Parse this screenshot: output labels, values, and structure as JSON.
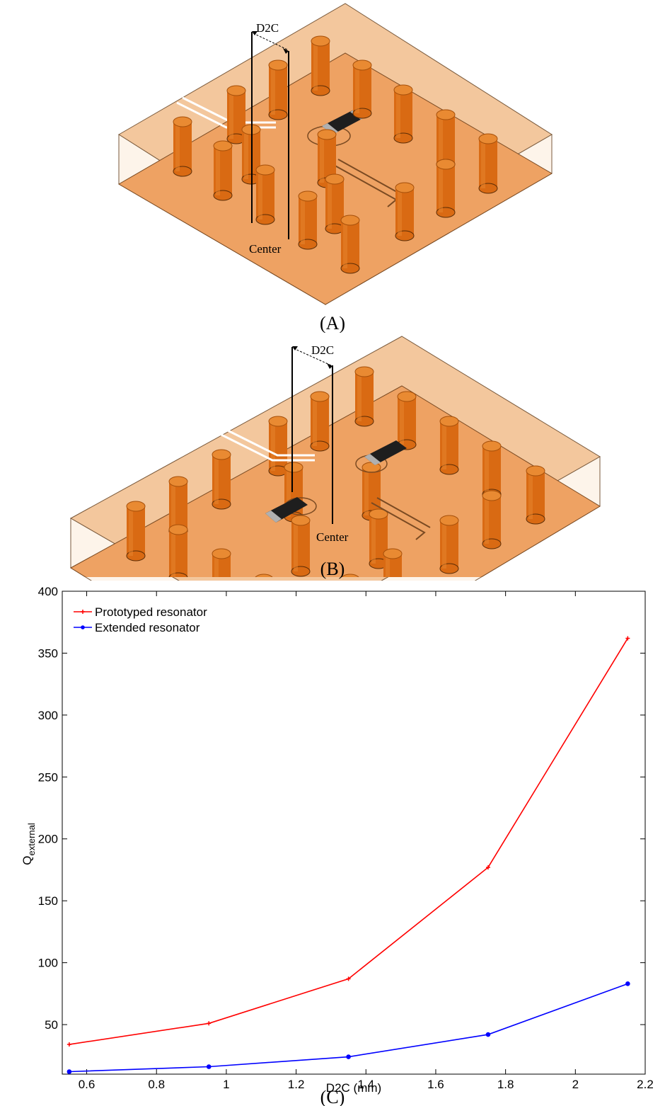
{
  "figure_a": {
    "caption": "(A)",
    "dim_label": "D2C",
    "center_label": "Center"
  },
  "figure_b": {
    "caption": "(B)",
    "dim_label": "D2C",
    "center_label": "Center"
  },
  "figure_c": {
    "caption": "(C)"
  },
  "colors": {
    "substrate_top": "#f3c79d",
    "board": "#eea263",
    "post": "#d96a13",
    "post_top": "#e98a32",
    "chip": "#1e1e1e",
    "prototyped": "#ff0000",
    "extended": "#0000ff"
  },
  "chart_data": {
    "type": "line",
    "xlabel": "D2C (mm)",
    "ylabel": "Q",
    "ylabel_subscript": "external",
    "xlim": [
      0.53,
      2.2
    ],
    "ylim": [
      10,
      400
    ],
    "xticks": [
      0.6,
      0.8,
      1,
      1.2,
      1.4,
      1.6,
      1.8,
      2,
      2.2
    ],
    "xtick_labels": [
      "0.6",
      "0.8",
      "1",
      "1.2",
      "1.4",
      "1.6",
      "1.8",
      "2",
      "2.2"
    ],
    "yticks": [
      50,
      100,
      150,
      200,
      250,
      300,
      350,
      400
    ],
    "ytick_labels": [
      "50",
      "100",
      "150",
      "200",
      "250",
      "300",
      "350",
      "400"
    ],
    "legend_position": "top-left",
    "grid": false,
    "series": [
      {
        "name": "Prototyped resonator",
        "color": "#ff0000",
        "marker": "+",
        "x": [
          0.55,
          0.95,
          1.35,
          1.75,
          2.15
        ],
        "y": [
          34,
          51,
          87,
          177,
          362
        ]
      },
      {
        "name": "Extended resonator",
        "color": "#0000ff",
        "marker": "o",
        "x": [
          0.55,
          0.95,
          1.35,
          1.75,
          2.15
        ],
        "y": [
          12,
          16,
          24,
          42,
          83
        ]
      }
    ]
  }
}
